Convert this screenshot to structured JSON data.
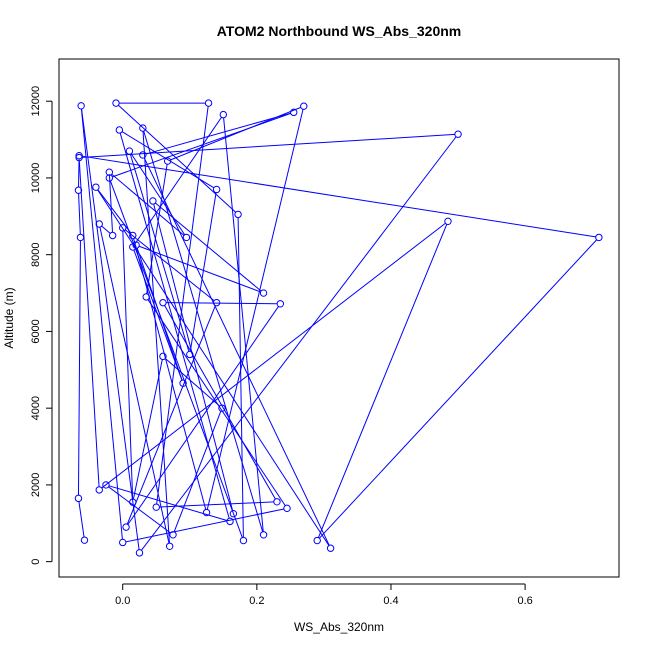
{
  "chart_data": {
    "type": "line",
    "title": "ATOM2 Northbound WS_Abs_320nm",
    "xlabel": "WS_Abs_320nm",
    "ylabel": "Altitude (m)",
    "xlim": [
      -0.095,
      0.74
    ],
    "ylim": [
      -400,
      13100
    ],
    "x_ticks": [
      0.0,
      0.2,
      0.4,
      0.6
    ],
    "x_tick_labels": [
      "0.0",
      "0.2",
      "0.4",
      "0.6"
    ],
    "y_ticks": [
      0,
      2000,
      4000,
      6000,
      8000,
      10000,
      12000
    ],
    "y_tick_labels": [
      "0",
      "2000",
      "4000",
      "6000",
      "8000",
      "10000",
      "12000"
    ],
    "grid": false,
    "marker": "open-circle",
    "series_color": "#0000ff",
    "points": [
      {
        "x": -0.057,
        "y": 560
      },
      {
        "x": -0.066,
        "y": 1650
      },
      {
        "x": -0.063,
        "y": 8450
      },
      {
        "x": -0.066,
        "y": 9680
      },
      {
        "x": -0.065,
        "y": 10580
      },
      {
        "x": 0.71,
        "y": 8450
      },
      {
        "x": 0.29,
        "y": 550
      },
      {
        "x": 0.485,
        "y": 8870
      },
      {
        "x": -0.035,
        "y": 1870
      },
      {
        "x": -0.065,
        "y": 10530
      },
      {
        "x": 0.5,
        "y": 11140
      },
      {
        "x": 0.025,
        "y": 230
      },
      {
        "x": -0.062,
        "y": 11880
      },
      {
        "x": 0.0,
        "y": 500
      },
      {
        "x": 0.245,
        "y": 1390
      },
      {
        "x": 0.035,
        "y": 6900
      },
      {
        "x": 0.067,
        "y": 10440
      },
      {
        "x": 0.27,
        "y": 11870
      },
      {
        "x": 0.125,
        "y": 1280
      },
      {
        "x": 0.015,
        "y": 8500
      },
      {
        "x": -0.04,
        "y": 9760
      },
      {
        "x": 0.31,
        "y": 350
      },
      {
        "x": 0.03,
        "y": 10600
      },
      {
        "x": 0.255,
        "y": 11710
      },
      {
        "x": -0.02,
        "y": 10000
      },
      {
        "x": 0.18,
        "y": 550
      },
      {
        "x": 0.172,
        "y": 9050
      },
      {
        "x": -0.01,
        "y": 11950
      },
      {
        "x": 0.128,
        "y": 11950
      },
      {
        "x": 0.05,
        "y": 1420
      },
      {
        "x": 0.23,
        "y": 1560
      },
      {
        "x": 0.06,
        "y": 6750
      },
      {
        "x": 0.235,
        "y": 6720
      },
      {
        "x": 0.005,
        "y": 900
      },
      {
        "x": 0.14,
        "y": 6750
      },
      {
        "x": 0.0,
        "y": 8700
      },
      {
        "x": 0.015,
        "y": 1550
      },
      {
        "x": 0.06,
        "y": 5350
      },
      {
        "x": 0.148,
        "y": 4000
      },
      {
        "x": 0.075,
        "y": 700
      },
      {
        "x": -0.025,
        "y": 2000
      },
      {
        "x": 0.16,
        "y": 1050
      },
      {
        "x": -0.005,
        "y": 11250
      },
      {
        "x": 0.14,
        "y": 9700
      },
      {
        "x": 0.1,
        "y": 5400
      },
      {
        "x": 0.01,
        "y": 10700
      },
      {
        "x": 0.095,
        "y": 8450
      },
      {
        "x": -0.02,
        "y": 10150
      },
      {
        "x": -0.015,
        "y": 8500
      },
      {
        "x": -0.035,
        "y": 8800
      },
      {
        "x": 0.07,
        "y": 400
      },
      {
        "x": 0.03,
        "y": 11300
      },
      {
        "x": 0.21,
        "y": 700
      },
      {
        "x": 0.15,
        "y": 11650
      },
      {
        "x": 0.015,
        "y": 8200
      },
      {
        "x": 0.09,
        "y": 4650
      },
      {
        "x": 0.02,
        "y": 8250
      },
      {
        "x": 0.21,
        "y": 7000
      },
      {
        "x": 0.045,
        "y": 9400
      },
      {
        "x": 0.165,
        "y": 1250
      }
    ]
  }
}
